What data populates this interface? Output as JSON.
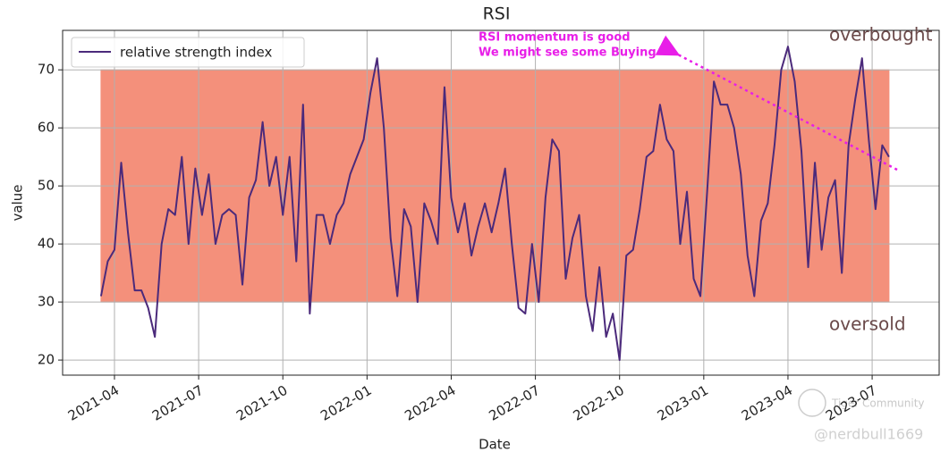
{
  "chart_data": {
    "type": "line",
    "title": "RSI",
    "xlabel": "Date",
    "ylabel": "value",
    "x": [
      2021.21,
      2021.23,
      2021.25,
      2021.27,
      2021.29,
      2021.31,
      2021.33,
      2021.35,
      2021.37,
      2021.39,
      2021.41,
      2021.43,
      2021.45,
      2021.47,
      2021.49,
      2021.51,
      2021.53,
      2021.55,
      2021.57,
      2021.59,
      2021.61,
      2021.63,
      2021.65,
      2021.67,
      2021.69,
      2021.71,
      2021.73,
      2021.75,
      2021.77,
      2021.79,
      2021.81,
      2021.83,
      2021.85,
      2021.87,
      2021.89,
      2021.91,
      2021.93,
      2021.95,
      2021.97,
      2021.99,
      2022.01,
      2022.03,
      2022.05,
      2022.07,
      2022.09,
      2022.11,
      2022.13,
      2022.15,
      2022.17,
      2022.19,
      2022.21,
      2022.23,
      2022.25,
      2022.27,
      2022.29,
      2022.31,
      2022.33,
      2022.35,
      2022.37,
      2022.39,
      2022.41,
      2022.43,
      2022.45,
      2022.47,
      2022.49,
      2022.51,
      2022.53,
      2022.55,
      2022.57,
      2022.59,
      2022.61,
      2022.63,
      2022.65,
      2022.67,
      2022.69,
      2022.71,
      2022.73,
      2022.75,
      2022.77,
      2022.79,
      2022.81,
      2022.83,
      2022.85,
      2022.87,
      2022.89,
      2022.91,
      2022.93,
      2022.95,
      2022.97,
      2022.99,
      2023.01,
      2023.03,
      2023.05,
      2023.07,
      2023.09,
      2023.11,
      2023.13,
      2023.15,
      2023.17,
      2023.19,
      2023.21,
      2023.23,
      2023.25,
      2023.27,
      2023.29,
      2023.31,
      2023.33,
      2023.35,
      2023.37,
      2023.39,
      2023.41,
      2023.43,
      2023.45,
      2023.47,
      2023.49,
      2023.51,
      2023.53,
      2023.55
    ],
    "series": [
      {
        "name": "relative strength index",
        "color": "#4b2a7b",
        "values": [
          31,
          37,
          39,
          54,
          42,
          32,
          32,
          29,
          24,
          40,
          46,
          45,
          55,
          40,
          53,
          45,
          52,
          40,
          45,
          46,
          45,
          33,
          48,
          51,
          61,
          50,
          55,
          45,
          55,
          37,
          64,
          28,
          45,
          45,
          40,
          45,
          47,
          52,
          55,
          58,
          66,
          72,
          60,
          41,
          31,
          46,
          43,
          30,
          47,
          44,
          40,
          67,
          48,
          42,
          47,
          38,
          43,
          47,
          42,
          47,
          53,
          40,
          29,
          28,
          40,
          30,
          48,
          58,
          56,
          34,
          41,
          45,
          31,
          25,
          36,
          24,
          28,
          20,
          38,
          39,
          46,
          55,
          56,
          64,
          58,
          56,
          40,
          49,
          34,
          31,
          49,
          68,
          64,
          64,
          60,
          52,
          38,
          31,
          44,
          47,
          57,
          70,
          74,
          68,
          56,
          36,
          54,
          39,
          48,
          51,
          35,
          57,
          65,
          72,
          58,
          46,
          57,
          55
        ]
      }
    ],
    "band": {
      "ymin": 30,
      "ymax": 70,
      "color": "#f4907b"
    },
    "xlim": [
      2021.096,
      2023.699
    ],
    "xticks": [
      {
        "value": 2021.25,
        "label": "2021-04"
      },
      {
        "value": 2021.5,
        "label": "2021-07"
      },
      {
        "value": 2021.75,
        "label": "2021-10"
      },
      {
        "value": 2022,
        "label": "2022-01"
      },
      {
        "value": 2022.25,
        "label": "2022-04"
      },
      {
        "value": 2022.5,
        "label": "2022-07"
      },
      {
        "value": 2022.75,
        "label": "2022-10"
      },
      {
        "value": 2023,
        "label": "2023-01"
      },
      {
        "value": 2023.25,
        "label": "2023-04"
      },
      {
        "value": 2023.5,
        "label": "2023-07"
      }
    ],
    "ylim": [
      17.4,
      76.8
    ],
    "yticks": [
      20,
      30,
      40,
      50,
      60,
      70
    ],
    "grid": true,
    "legend": "upper left",
    "annotations": [
      "RSI momentum is good",
      "We might see some Buying",
      "overbought",
      "oversold"
    ],
    "watermark": [
      "Tiger Community",
      "@nerdbull1669"
    ]
  }
}
